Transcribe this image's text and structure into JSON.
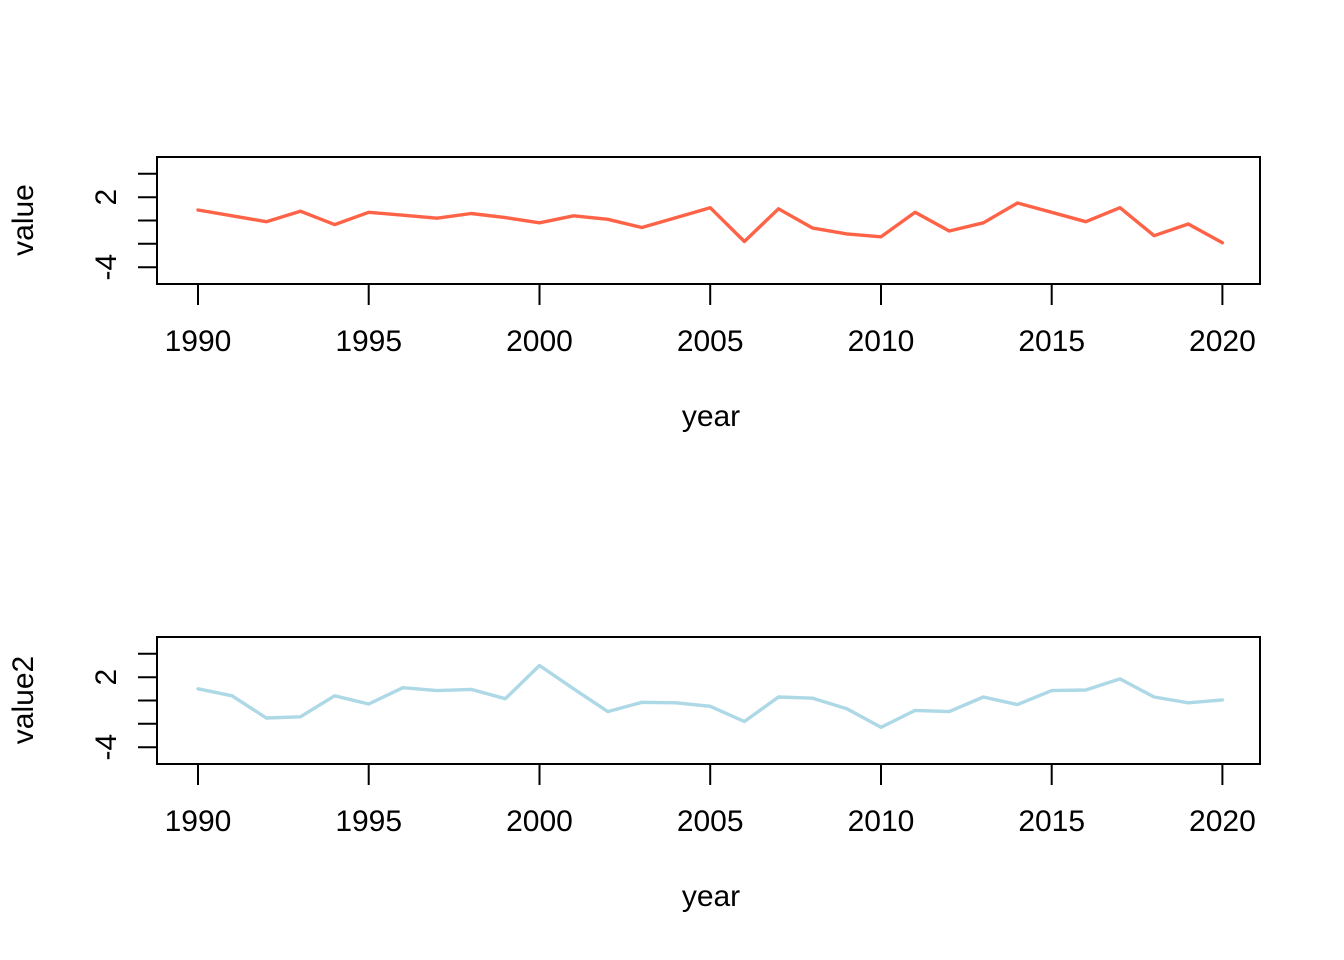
{
  "figure_background": "#FFFFFF",
  "axis_color": "#000000",
  "chart_data": [
    {
      "type": "line",
      "title": "",
      "xlabel": "year",
      "ylabel": "value",
      "grid": false,
      "legend_position": "none",
      "line_color": "#FF6347",
      "xlim": [
        1988.8,
        2021.1
      ],
      "ylim": [
        -5.44,
        5.44
      ],
      "x_ticks": [
        1990,
        1995,
        2000,
        2005,
        2010,
        2015,
        2020
      ],
      "x_tick_labels": [
        "1990",
        "1995",
        "2000",
        "2005",
        "2010",
        "2015",
        "2020"
      ],
      "y_ticks": [
        4,
        2,
        0,
        -2,
        -4
      ],
      "y_tick_labels": [
        "",
        "2",
        "",
        "",
        "-4"
      ],
      "x": [
        1990,
        1991,
        1992,
        1993,
        1994,
        1995,
        1996,
        1997,
        1998,
        1999,
        2000,
        2001,
        2002,
        2003,
        2004,
        2005,
        2006,
        2007,
        2008,
        2009,
        2010,
        2011,
        2012,
        2013,
        2014,
        2015,
        2016,
        2017,
        2018,
        2019,
        2020
      ],
      "series": [
        {
          "name": "value",
          "color": "#FF6347",
          "values": [
            0.9,
            0.4,
            -0.1,
            0.8,
            -0.35,
            0.7,
            0.45,
            0.2,
            0.6,
            0.25,
            -0.2,
            0.4,
            0.1,
            -0.6,
            0.25,
            1.1,
            -1.8,
            1.0,
            -0.65,
            -1.15,
            -1.4,
            0.7,
            -0.9,
            -0.2,
            1.5,
            0.7,
            -0.1,
            1.1,
            -1.3,
            -0.3,
            -1.9
          ]
        }
      ]
    },
    {
      "type": "line",
      "title": "",
      "xlabel": "year",
      "ylabel": "value2",
      "grid": false,
      "legend_position": "none",
      "line_color": "#ADD8E6",
      "xlim": [
        1988.8,
        2021.1
      ],
      "ylim": [
        -5.44,
        5.44
      ],
      "x_ticks": [
        1990,
        1995,
        2000,
        2005,
        2010,
        2015,
        2020
      ],
      "x_tick_labels": [
        "1990",
        "1995",
        "2000",
        "2005",
        "2010",
        "2015",
        "2020"
      ],
      "y_ticks": [
        4,
        2,
        0,
        -2,
        -4
      ],
      "y_tick_labels": [
        "",
        "2",
        "",
        "",
        "-4"
      ],
      "x": [
        1990,
        1991,
        1992,
        1993,
        1994,
        1995,
        1996,
        1997,
        1998,
        1999,
        2000,
        2001,
        2002,
        2003,
        2004,
        2005,
        2006,
        2007,
        2008,
        2009,
        2010,
        2011,
        2012,
        2013,
        2014,
        2015,
        2016,
        2017,
        2018,
        2019,
        2020
      ],
      "series": [
        {
          "name": "value2",
          "color": "#ADD8E6",
          "values": [
            1.0,
            0.4,
            -1.5,
            -1.4,
            0.4,
            -0.3,
            1.1,
            0.85,
            0.95,
            0.15,
            3.0,
            1.0,
            -0.95,
            -0.15,
            -0.2,
            -0.5,
            -1.8,
            0.3,
            0.2,
            -0.7,
            -2.3,
            -0.85,
            -0.95,
            0.3,
            -0.35,
            0.85,
            0.9,
            1.85,
            0.3,
            -0.2,
            0.05
          ]
        }
      ]
    }
  ]
}
